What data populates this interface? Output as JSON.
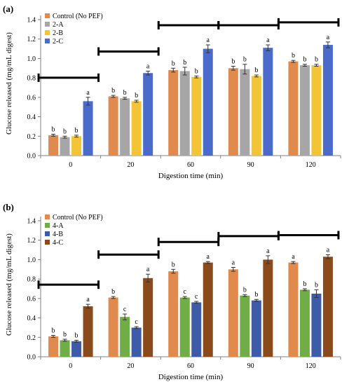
{
  "chart_data": [
    {
      "type": "bar",
      "panel_label": "(a)",
      "categories": [
        "0",
        "20",
        "60",
        "90",
        "120"
      ],
      "series": [
        {
          "name": "Control (No PEF)",
          "color": "#E08A4E",
          "values": [
            0.21,
            0.61,
            0.88,
            0.9,
            0.97
          ],
          "errors": [
            0.01,
            0.01,
            0.02,
            0.02,
            0.01
          ],
          "letters": [
            "b",
            "b",
            "b",
            "b",
            "b"
          ]
        },
        {
          "name": "2-A",
          "color": "#A6A6A6",
          "values": [
            0.19,
            0.59,
            0.87,
            0.89,
            0.93
          ],
          "errors": [
            0.01,
            0.01,
            0.04,
            0.05,
            0.01
          ],
          "letters": [
            "b",
            "b",
            "b",
            "b",
            "b"
          ]
        },
        {
          "name": "2-B",
          "color": "#F2C436",
          "values": [
            0.2,
            0.56,
            0.81,
            0.82,
            0.93
          ],
          "errors": [
            0.01,
            0.01,
            0.01,
            0.01,
            0.01
          ],
          "letters": [
            "b",
            "b",
            "b",
            "b",
            "b"
          ]
        },
        {
          "name": "2-C",
          "color": "#4A6BC9",
          "values": [
            0.56,
            0.85,
            1.1,
            1.11,
            1.14
          ],
          "errors": [
            0.04,
            0.02,
            0.04,
            0.03,
            0.03
          ],
          "letters": [
            "a",
            "a",
            "a",
            "a",
            "a"
          ]
        }
      ],
      "xlabel": "Digestion time (min)",
      "ylabel": "Glucose released (mg/mL digest)",
      "ylim": [
        0,
        1.4
      ],
      "yticks": [
        "0.0",
        "0.2",
        "0.4",
        "0.6",
        "0.8",
        "1.0",
        "1.2",
        "1.4"
      ],
      "significance_brackets": true,
      "grid": false,
      "legend_position": "top-left"
    },
    {
      "type": "bar",
      "panel_label": "(b)",
      "categories": [
        "0",
        "20",
        "60",
        "90",
        "120"
      ],
      "series": [
        {
          "name": "Control (No PEF)",
          "color": "#E08A4E",
          "values": [
            0.21,
            0.61,
            0.88,
            0.9,
            0.97
          ],
          "errors": [
            0.01,
            0.01,
            0.02,
            0.02,
            0.01
          ],
          "letters": [
            "b",
            "b",
            "b",
            "a",
            "a"
          ]
        },
        {
          "name": "4-A",
          "color": "#70AD47",
          "values": [
            0.17,
            0.41,
            0.61,
            0.63,
            0.69
          ],
          "errors": [
            0.01,
            0.03,
            0.01,
            0.01,
            0.01
          ],
          "letters": [
            "b",
            "c",
            "c",
            "b",
            "b"
          ]
        },
        {
          "name": "4-B",
          "color": "#3E5BA9",
          "values": [
            0.16,
            0.3,
            0.56,
            0.58,
            0.65
          ],
          "errors": [
            0.01,
            0.01,
            0.01,
            0.01,
            0.04
          ],
          "letters": [
            "b",
            "c",
            "c",
            "b",
            "b"
          ]
        },
        {
          "name": "4-C",
          "color": "#8B4A1C",
          "values": [
            0.52,
            0.81,
            0.97,
            1.0,
            1.03
          ],
          "errors": [
            0.02,
            0.04,
            0.01,
            0.04,
            0.02
          ],
          "letters": [
            "a",
            "a",
            "a",
            "a",
            "a"
          ]
        }
      ],
      "xlabel": "Digestion time (min)",
      "ylabel": "Glucose released (mg/mL digest)",
      "ylim": [
        0,
        1.4
      ],
      "yticks": [
        "0.0",
        "0.2",
        "0.4",
        "0.6",
        "0.8",
        "1.0",
        "1.2",
        "1.4"
      ],
      "significance_brackets": true,
      "grid": false,
      "legend_position": "top-left"
    }
  ]
}
